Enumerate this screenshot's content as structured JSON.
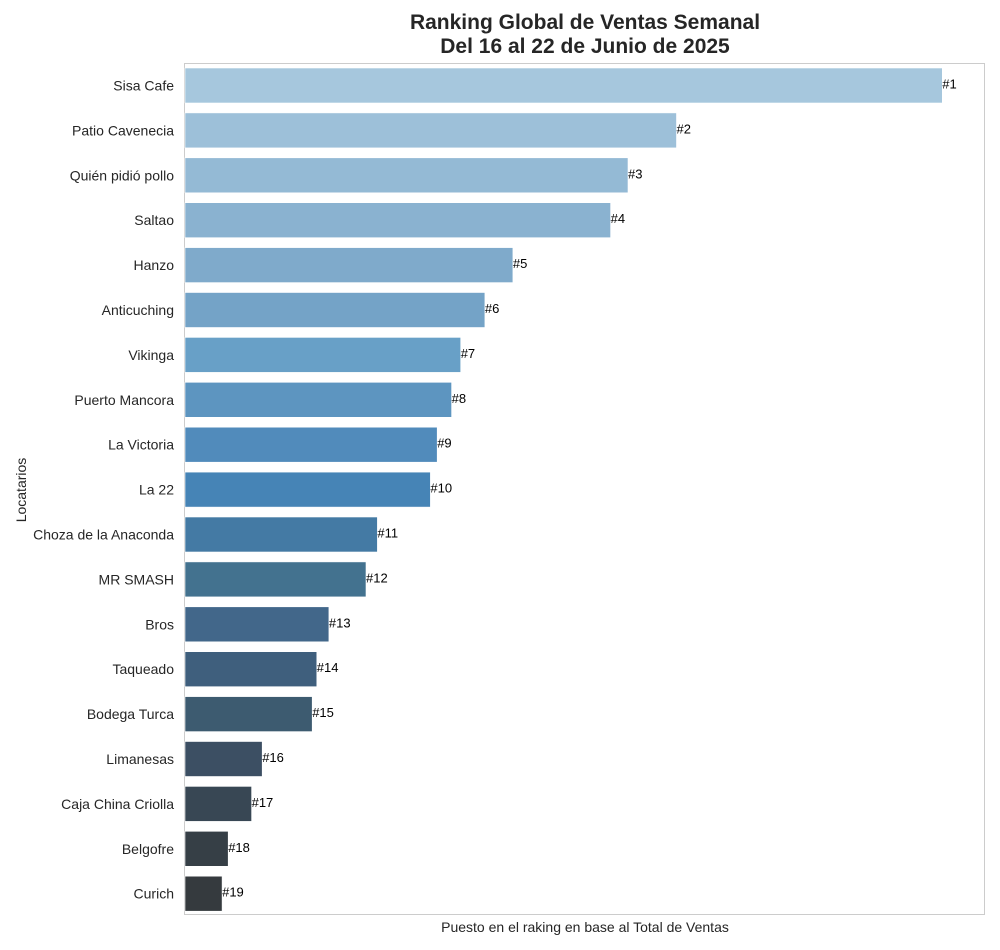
{
  "chart_data": {
    "type": "bar",
    "orientation": "horizontal",
    "title": "Ranking Global de Ventas Semanal",
    "subtitle": "Del 16 al 22 de Junio de 2025",
    "xlabel": "Puesto en el raking en base al Total de Ventas",
    "ylabel": "Locatarios",
    "grid": false,
    "categories": [
      "Sisa Cafe",
      "Patio Cavenecia",
      "Quién pidió pollo",
      "Saltao",
      "Hanzo",
      "Anticuching",
      "Vikinga",
      "Puerto Mancora",
      "La Victoria",
      "La 22",
      "Choza de la Anaconda",
      "MR SMASH",
      "Bros",
      "Taqueado",
      "Bodega Turca",
      "Limanesas",
      "Caja China Criolla",
      "Belgofre",
      "Curich"
    ],
    "values": [
      100,
      64.9,
      58.5,
      56.2,
      43.3,
      39.6,
      36.4,
      35.2,
      33.3,
      32.4,
      25.4,
      23.9,
      19.0,
      17.4,
      16.8,
      10.2,
      8.8,
      5.7,
      4.9
    ],
    "data_labels": [
      "#1",
      "#2",
      "#3",
      "#4",
      "#5",
      "#6",
      "#7",
      "#8",
      "#9",
      "#10",
      "#11",
      "#12",
      "#13",
      "#14",
      "#15",
      "#16",
      "#17",
      "#18",
      "#19"
    ],
    "xlim": [
      0,
      105.5
    ],
    "colors": [
      "#a6c7dd",
      "#9dc0d9",
      "#94bad5",
      "#8ab2d0",
      "#7faacb",
      "#74a3c7",
      "#68a0c7",
      "#5d95c0",
      "#518bbb",
      "#4684b6",
      "#447aa4",
      "#43728f",
      "#42678a",
      "#3f5f7d",
      "#3d5b70",
      "#3c4f63",
      "#384754",
      "#363f46",
      "#353a3e"
    ]
  }
}
